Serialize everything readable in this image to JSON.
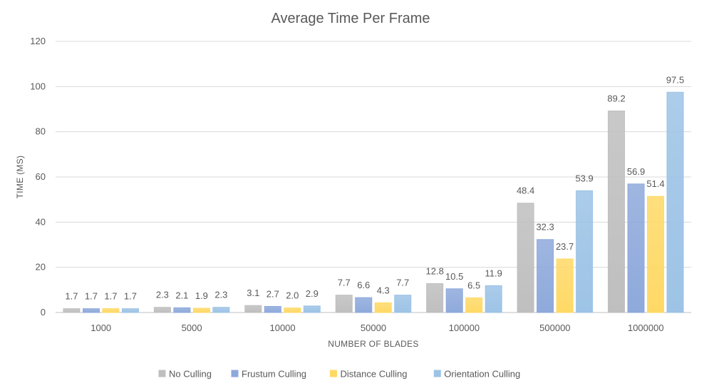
{
  "chart_data": {
    "type": "bar",
    "title": "Average Time Per Frame",
    "xlabel": "NUMBER OF BLADES",
    "ylabel": "TIME (MS)",
    "ylim": [
      0,
      120
    ],
    "yticks": [
      0,
      20,
      40,
      60,
      80,
      100,
      120
    ],
    "grid": true,
    "legend_position": "bottom",
    "categories": [
      "1000",
      "5000",
      "10000",
      "50000",
      "100000",
      "500000",
      "1000000"
    ],
    "series": [
      {
        "name": "No Culling",
        "color": "#BFBFBF",
        "values": [
          1.7,
          2.3,
          3.1,
          7.7,
          12.8,
          48.4,
          89.2
        ],
        "labels": [
          "1.7",
          "2.3",
          "3.1",
          "7.7",
          "12.8",
          "48.4",
          "89.2"
        ]
      },
      {
        "name": "Frustum Culling",
        "color": "#8EA9DB",
        "values": [
          1.7,
          2.1,
          2.7,
          6.6,
          10.5,
          32.3,
          56.9
        ],
        "labels": [
          "1.7",
          "2.1",
          "2.7",
          "6.6",
          "10.5",
          "32.3",
          "56.9"
        ]
      },
      {
        "name": "Distance Culling",
        "color": "#FFD966",
        "values": [
          1.7,
          1.9,
          2.0,
          4.3,
          6.5,
          23.7,
          51.4
        ],
        "labels": [
          "1.7",
          "1.9",
          "2.0",
          "4.3",
          "6.5",
          "23.7",
          "51.4"
        ]
      },
      {
        "name": "Orientation Culling",
        "color": "#9DC3E6",
        "values": [
          1.7,
          2.3,
          2.9,
          7.7,
          11.9,
          53.9,
          97.5
        ],
        "labels": [
          "1.7",
          "2.3",
          "2.9",
          "7.7",
          "11.9",
          "53.9",
          "97.5"
        ]
      }
    ]
  }
}
